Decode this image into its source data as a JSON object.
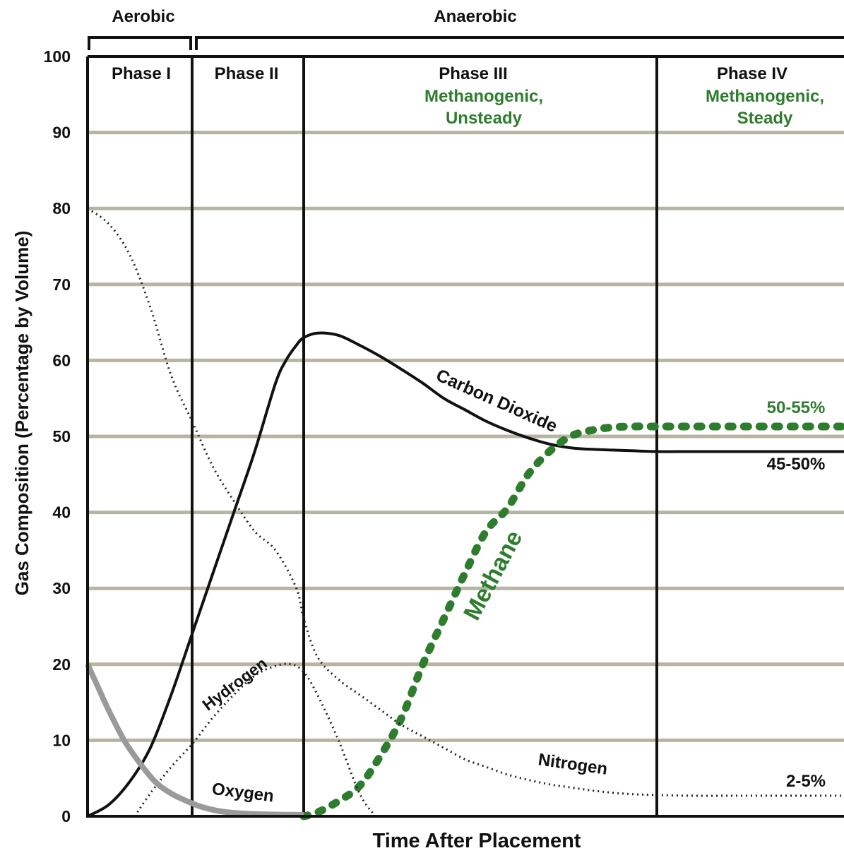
{
  "chart_data": {
    "type": "line",
    "title": "",
    "xlabel": "Time After Placement",
    "ylabel": "Gas Composition (Percentage by Volume)",
    "ylim": [
      0,
      100
    ],
    "yticks": [
      "0",
      "10",
      "20",
      "30",
      "40",
      "50",
      "60",
      "70",
      "80",
      "90",
      "100"
    ],
    "grid": true,
    "x_unit_note": "x is relative time, Phase I spans 0-1",
    "xlim": [
      0,
      7.4
    ],
    "regimes": [
      {
        "label": "Aerobic",
        "start": 0,
        "end": 1
      },
      {
        "label": "Anaerobic",
        "start": 1.05,
        "end": 7.4
      }
    ],
    "phases": [
      {
        "label": "Phase I",
        "subtitle": [],
        "start": 0,
        "end": 1
      },
      {
        "label": "Phase II",
        "subtitle": [],
        "start": 1,
        "end": 2.07
      },
      {
        "label": "Phase III",
        "subtitle": [
          "Methanogenic,",
          "Unsteady"
        ],
        "start": 2.07,
        "end": 5.42
      },
      {
        "label": "Phase IV",
        "subtitle": [
          "Methanogenic,",
          "Steady"
        ],
        "start": 5.42,
        "end": 7.4
      }
    ],
    "series": [
      {
        "name": "Carbon Dioxide",
        "style": "solid",
        "color": "#111111",
        "x": [
          0,
          0.2,
          0.4,
          0.6,
          0.8,
          1.0,
          1.2,
          1.4,
          1.6,
          1.8,
          1.9,
          2.0,
          2.07,
          2.2,
          2.4,
          2.6,
          2.8,
          3.0,
          3.2,
          3.4,
          3.6,
          3.8,
          4.0,
          4.2,
          4.4,
          4.6,
          4.8,
          5.0,
          5.2,
          5.42,
          5.8,
          6.2,
          6.6,
          7.0,
          7.4
        ],
        "y": [
          0,
          1.5,
          4.5,
          9,
          16,
          24,
          32,
          40,
          48,
          57,
          60,
          62,
          63,
          63.6,
          63.3,
          62,
          60.5,
          58.8,
          57,
          55,
          53.5,
          52,
          50.8,
          49.8,
          49,
          48.5,
          48.3,
          48.2,
          48.1,
          48,
          48,
          48,
          48,
          48,
          48
        ]
      },
      {
        "name": "Methane",
        "style": "dashed",
        "color": "#2e7d2e",
        "x": [
          2.07,
          2.2,
          2.4,
          2.6,
          2.8,
          3.0,
          3.2,
          3.4,
          3.6,
          3.8,
          4.0,
          4.2,
          4.4,
          4.6,
          4.8,
          5.0,
          5.2,
          5.42,
          5.8,
          6.2,
          6.6,
          7.0,
          7.4
        ],
        "y": [
          0,
          0.5,
          2,
          4,
          8,
          13,
          20,
          26,
          32,
          37.5,
          40.5,
          45,
          48,
          50,
          50.8,
          51.2,
          51.3,
          51.3,
          51.3,
          51.3,
          51.3,
          51.3,
          51.3
        ]
      },
      {
        "name": "Nitrogen",
        "style": "dotted",
        "color": "#222222",
        "x": [
          0,
          0.2,
          0.4,
          0.6,
          0.8,
          1.0,
          1.2,
          1.4,
          1.6,
          1.8,
          2.0,
          2.07,
          2.2,
          2.4,
          2.6,
          2.8,
          3.0,
          3.2,
          3.4,
          3.6,
          3.8,
          4.0,
          4.2,
          4.4,
          4.6,
          4.8,
          5.0,
          5.2,
          5.42,
          5.8,
          6.2,
          6.6,
          7.0,
          7.4
        ],
        "y": [
          80,
          78,
          74,
          67,
          58,
          52,
          46,
          41.5,
          37.5,
          35,
          30,
          26,
          21,
          18,
          16,
          14,
          12,
          10.5,
          9,
          7.5,
          6.5,
          5.5,
          4.8,
          4.2,
          3.8,
          3.4,
          3.1,
          2.9,
          2.8,
          2.7,
          2.7,
          2.7,
          2.7,
          2.7
        ]
      },
      {
        "name": "Hydrogen",
        "style": "dotted",
        "color": "#222222",
        "x": [
          0.45,
          0.6,
          0.8,
          1.0,
          1.2,
          1.4,
          1.6,
          1.8,
          1.95,
          2.07,
          2.2,
          2.4,
          2.6,
          2.75
        ],
        "y": [
          0,
          3,
          6.5,
          9.5,
          13,
          16,
          18.5,
          19.8,
          20,
          19,
          16,
          10,
          3,
          0
        ]
      },
      {
        "name": "Oxygen",
        "style": "solid-thick",
        "color": "#9a9a9a",
        "x": [
          0,
          0.1,
          0.2,
          0.35,
          0.5,
          0.65,
          0.8,
          0.95,
          1.1,
          1.3,
          1.6,
          2.0,
          2.07
        ],
        "y": [
          20,
          17,
          14,
          10,
          7,
          4.5,
          3,
          2,
          1.2,
          0.6,
          0.3,
          0.2,
          0.2
        ]
      }
    ],
    "annotations": [
      {
        "text": "Carbon Dioxide",
        "color": "#111111"
      },
      {
        "text": "Methane",
        "color": "#2e7d2e"
      },
      {
        "text": "Nitrogen",
        "color": "#111111"
      },
      {
        "text": "Hydrogen",
        "color": "#111111"
      },
      {
        "text": "Oxygen",
        "color": "#111111"
      },
      {
        "text": "50-55%",
        "color": "#2e7d2e"
      },
      {
        "text": "45-50%",
        "color": "#111111"
      },
      {
        "text": "2-5%",
        "color": "#111111"
      }
    ]
  },
  "colors": {
    "gridline": "#b7b4a4",
    "axis": "#111111",
    "methane": "#2e7d2e",
    "oxygen": "#9a9a9a"
  }
}
